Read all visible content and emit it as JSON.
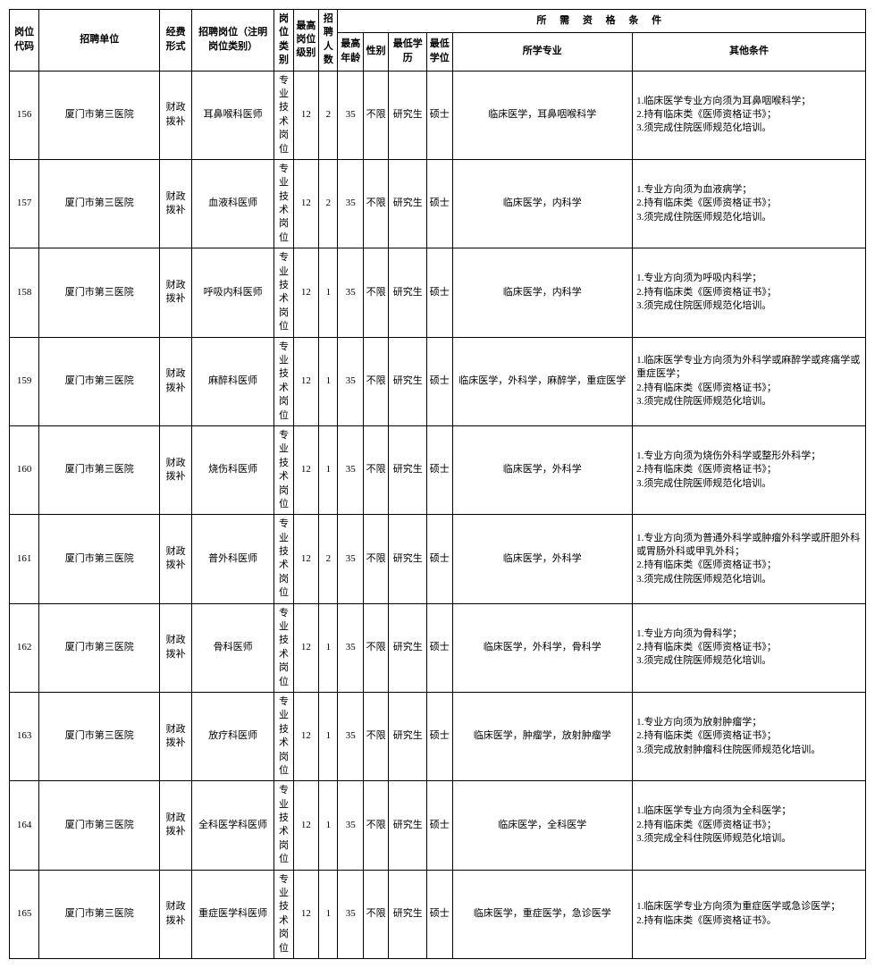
{
  "headers": {
    "qual_group": "所 需 资 格 条 件",
    "code": "岗位代码",
    "unit": "招聘单位",
    "fund": "经费形式",
    "post": "招聘岗位（注明岗位类别）",
    "type": "岗位类别",
    "rank": "最高岗位级别",
    "num": "招聘人数",
    "age": "最高年龄",
    "gender": "性别",
    "edu": "最低学历",
    "degree": "最低学位",
    "major": "所学专业",
    "other": "其他条件"
  },
  "rows": [
    {
      "code": "156",
      "unit": "厦门市第三医院",
      "fund": "财政拨补",
      "post": "耳鼻喉科医师",
      "type": "专业技术岗位",
      "rank": "12",
      "num": "2",
      "age": "35",
      "gender": "不限",
      "edu": "研究生",
      "degree": "硕士",
      "major": "临床医学，耳鼻咽喉科学",
      "other": "1.临床医学专业方向须为耳鼻咽喉科学；\n2.持有临床类《医师资格证书》；\n3.须完成住院医师规范化培训。"
    },
    {
      "code": "157",
      "unit": "厦门市第三医院",
      "fund": "财政拨补",
      "post": "血液科医师",
      "type": "专业技术岗位",
      "rank": "12",
      "num": "2",
      "age": "35",
      "gender": "不限",
      "edu": "研究生",
      "degree": "硕士",
      "major": "临床医学，内科学",
      "other": "1.专业方向须为血液病学；\n2.持有临床类《医师资格证书》；\n3.须完成住院医师规范化培训。"
    },
    {
      "code": "158",
      "unit": "厦门市第三医院",
      "fund": "财政拨补",
      "post": "呼吸内科医师",
      "type": "专业技术岗位",
      "rank": "12",
      "num": "1",
      "age": "35",
      "gender": "不限",
      "edu": "研究生",
      "degree": "硕士",
      "major": "临床医学，内科学",
      "other": "1.专业方向须为呼吸内科学；\n2.持有临床类《医师资格证书》；\n3.须完成住院医师规范化培训。"
    },
    {
      "code": "159",
      "unit": "厦门市第三医院",
      "fund": "财政拨补",
      "post": "麻醉科医师",
      "type": "专业技术岗位",
      "rank": "12",
      "num": "1",
      "age": "35",
      "gender": "不限",
      "edu": "研究生",
      "degree": "硕士",
      "major": "临床医学，外科学，麻醉学，重症医学",
      "other": "1.临床医学专业方向须为外科学或麻醉学或疼痛学或重症医学；\n2.持有临床类《医师资格证书》；\n3.须完成住院医师规范化培训。"
    },
    {
      "code": "160",
      "unit": "厦门市第三医院",
      "fund": "财政拨补",
      "post": "烧伤科医师",
      "type": "专业技术岗位",
      "rank": "12",
      "num": "1",
      "age": "35",
      "gender": "不限",
      "edu": "研究生",
      "degree": "硕士",
      "major": "临床医学，外科学",
      "other": "1.专业方向须为烧伤外科学或整形外科学；\n2.持有临床类《医师资格证书》；\n3.须完成住院医师规范化培训。"
    },
    {
      "code": "161",
      "unit": "厦门市第三医院",
      "fund": "财政拨补",
      "post": "普外科医师",
      "type": "专业技术岗位",
      "rank": "12",
      "num": "2",
      "age": "35",
      "gender": "不限",
      "edu": "研究生",
      "degree": "硕士",
      "major": "临床医学，外科学",
      "other": "1.专业方向须为普通外科学或肿瘤外科学或肝胆外科或胃肠外科或甲乳外科；\n2.持有临床类《医师资格证书》；\n3.须完成住院医师规范化培训。"
    },
    {
      "code": "162",
      "unit": "厦门市第三医院",
      "fund": "财政拨补",
      "post": "骨科医师",
      "type": "专业技术岗位",
      "rank": "12",
      "num": "1",
      "age": "35",
      "gender": "不限",
      "edu": "研究生",
      "degree": "硕士",
      "major": "临床医学，外科学，骨科学",
      "other": "1.专业方向须为骨科学；\n2.持有临床类《医师资格证书》；\n3.须完成住院医师规范化培训。"
    },
    {
      "code": "163",
      "unit": "厦门市第三医院",
      "fund": "财政拨补",
      "post": "放疗科医师",
      "type": "专业技术岗位",
      "rank": "12",
      "num": "1",
      "age": "35",
      "gender": "不限",
      "edu": "研究生",
      "degree": "硕士",
      "major": "临床医学，肿瘤学，放射肿瘤学",
      "other": "1.专业方向须为放射肿瘤学；\n2.持有临床类《医师资格证书》；\n3.须完成放射肿瘤科住院医师规范化培训。"
    },
    {
      "code": "164",
      "unit": "厦门市第三医院",
      "fund": "财政拨补",
      "post": "全科医学科医师",
      "type": "专业技术岗位",
      "rank": "12",
      "num": "1",
      "age": "35",
      "gender": "不限",
      "edu": "研究生",
      "degree": "硕士",
      "major": "临床医学，全科医学",
      "other": "1.临床医学专业方向须为全科医学；\n2.持有临床类《医师资格证书》；\n3.须完成全科住院医师规范化培训。"
    },
    {
      "code": "165",
      "unit": "厦门市第三医院",
      "fund": "财政拨补",
      "post": "重症医学科医师",
      "type": "专业技术岗位",
      "rank": "12",
      "num": "1",
      "age": "35",
      "gender": "不限",
      "edu": "研究生",
      "degree": "硕士",
      "major": "临床医学，重症医学，急诊医学",
      "other": "1.临床医学专业方向须为重症医学或急诊医学；\n2.持有临床类《医师资格证书》。"
    }
  ]
}
